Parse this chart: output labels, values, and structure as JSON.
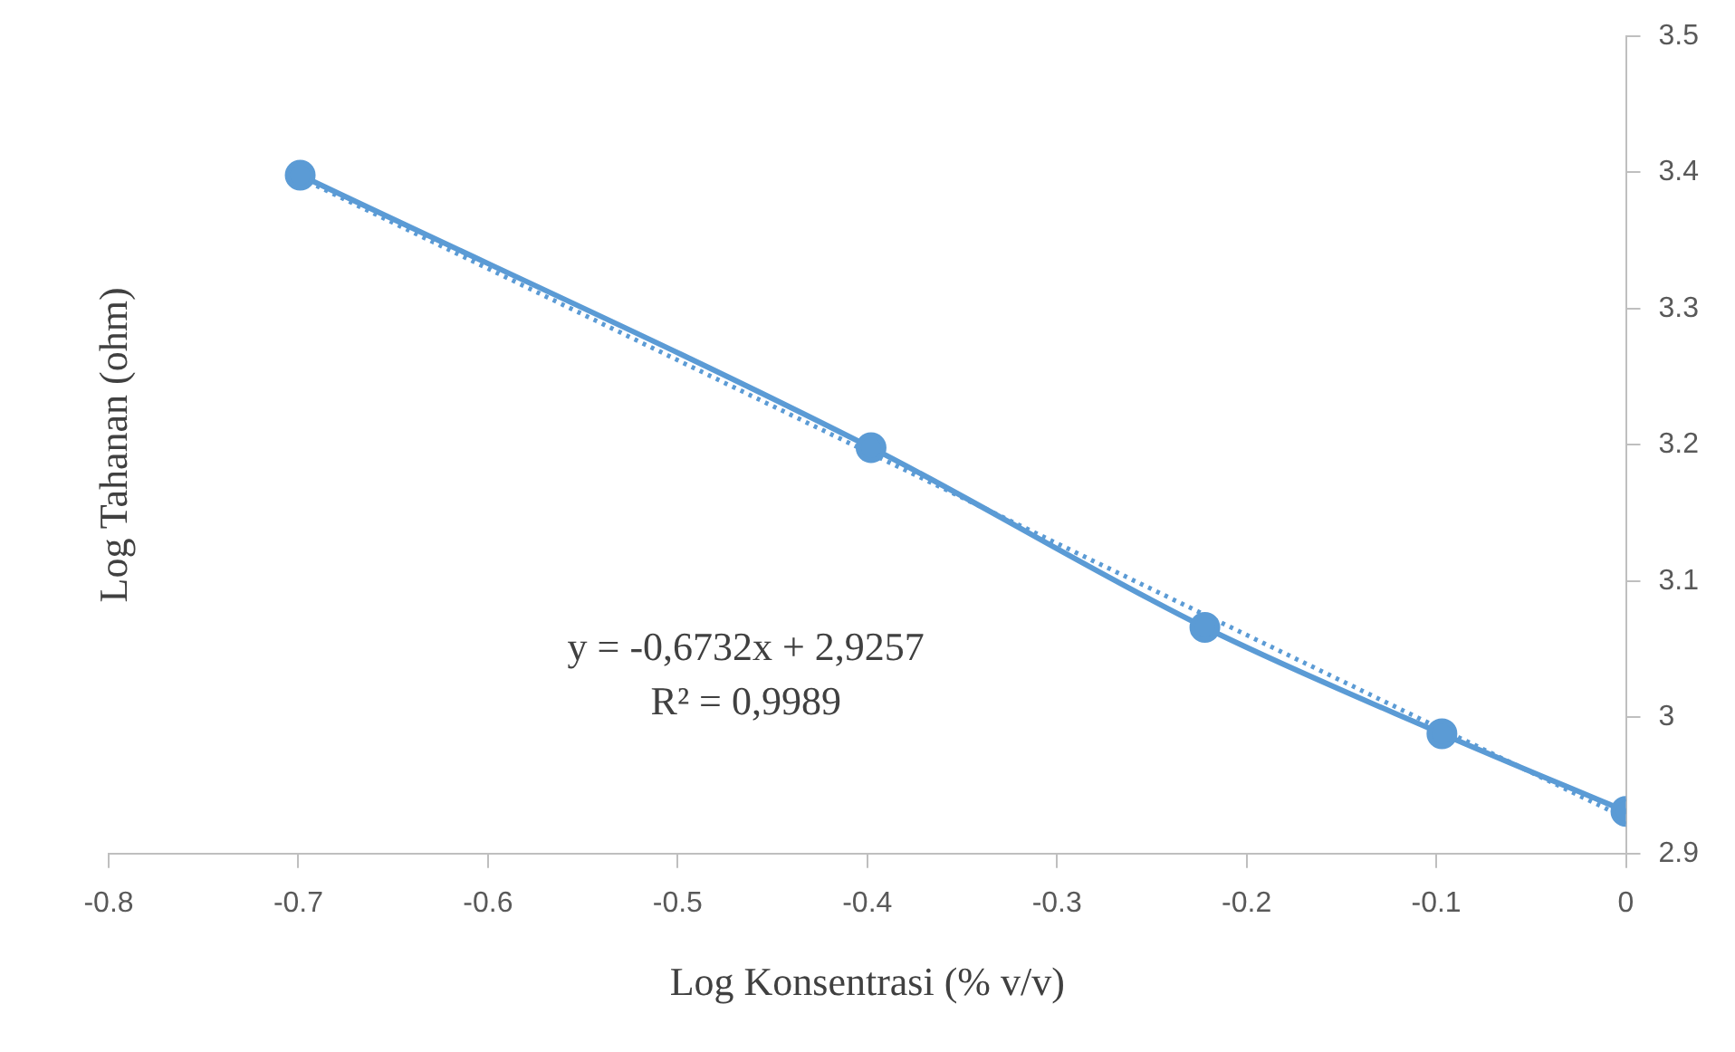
{
  "chart_data": {
    "type": "line",
    "xlabel": "Log Konsentrasi (% v/v)",
    "ylabel": "Log Tahanan (ohm)",
    "x": [
      -0.699,
      -0.398,
      -0.222,
      -0.097,
      0
    ],
    "series": [
      {
        "color": "#5b9bd5",
        "values": [
          3.398,
          3.198,
          3.066,
          2.988,
          2.931
        ],
        "marker": "circle",
        "line_style": "solid"
      },
      {
        "type": "line",
        "color": "#5b9bd5",
        "x": [
          -0.699,
          0
        ],
        "values": [
          3.396,
          2.926
        ],
        "marker": "none",
        "line_style": "dotted"
      }
    ],
    "xlim": [
      -0.8,
      0
    ],
    "xticks": [
      -0.8,
      -0.7,
      -0.6,
      -0.5,
      -0.4,
      -0.3,
      -0.2,
      -0.1,
      0
    ],
    "ylim": [
      2.9,
      3.5
    ],
    "yticks": [
      2.9,
      3,
      3.1,
      3.2,
      3.3,
      3.4,
      3.5
    ],
    "annotations": [
      "y = -0,6732x + 2,9257",
      "R² = 0,9989"
    ],
    "grid": false,
    "legend": false
  }
}
